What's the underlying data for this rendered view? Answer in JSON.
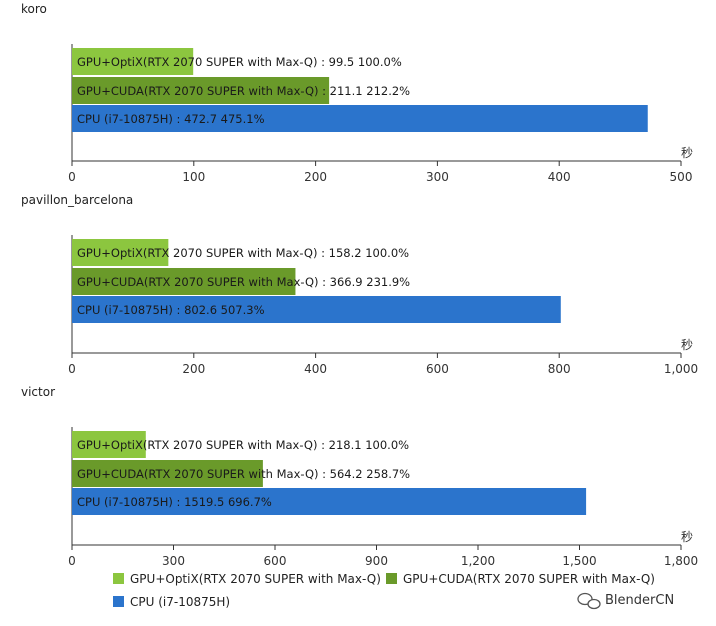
{
  "chart_data": [
    {
      "type": "bar",
      "orientation": "horizontal",
      "title": "koro",
      "xlabel": "秒",
      "xlim": [
        0,
        500
      ],
      "ticks": [
        "0",
        "100",
        "200",
        "300",
        "400",
        "500"
      ],
      "tick_values": [
        0,
        100,
        200,
        300,
        400,
        500
      ],
      "bars": [
        {
          "series": "GPU+OptiX(RTX 2070 SUPER with Max-Q)",
          "value": 99.5,
          "label": "GPU+OptiX(RTX 2070 SUPER with Max-Q) : 99.5  100.0%"
        },
        {
          "series": "GPU+CUDA(RTX 2070 SUPER with Max-Q)",
          "value": 211.1,
          "label": "GPU+CUDA(RTX 2070 SUPER with Max-Q) : 211.1  212.2%"
        },
        {
          "series": "CPU (i7-10875H)",
          "value": 472.7,
          "label": "CPU (i7-10875H) : 472.7  475.1%"
        }
      ]
    },
    {
      "type": "bar",
      "orientation": "horizontal",
      "title": "pavillon_barcelona",
      "xlabel": "秒",
      "xlim": [
        0,
        1000
      ],
      "ticks": [
        "0",
        "200",
        "400",
        "600",
        "800",
        "1,000"
      ],
      "tick_values": [
        0,
        200,
        400,
        600,
        800,
        1000
      ],
      "bars": [
        {
          "series": "GPU+OptiX(RTX 2070 SUPER with Max-Q)",
          "value": 158.2,
          "label": "GPU+OptiX(RTX 2070 SUPER with Max-Q) : 158.2  100.0%"
        },
        {
          "series": "GPU+CUDA(RTX 2070 SUPER with Max-Q)",
          "value": 366.9,
          "label": "GPU+CUDA(RTX 2070 SUPER with Max-Q) : 366.9  231.9%"
        },
        {
          "series": "CPU (i7-10875H)",
          "value": 802.6,
          "label": "CPU (i7-10875H) : 802.6  507.3%"
        }
      ]
    },
    {
      "type": "bar",
      "orientation": "horizontal",
      "title": "victor",
      "xlabel": "秒",
      "xlim": [
        0,
        1800
      ],
      "ticks": [
        "0",
        "300",
        "600",
        "900",
        "1,200",
        "1,500",
        "1,800"
      ],
      "tick_values": [
        0,
        300,
        600,
        900,
        1200,
        1500,
        1800
      ],
      "bars": [
        {
          "series": "GPU+OptiX(RTX 2070 SUPER with Max-Q)",
          "value": 218.1,
          "label": "GPU+OptiX(RTX 2070 SUPER with Max-Q) : 218.1  100.0%"
        },
        {
          "series": "GPU+CUDA(RTX 2070 SUPER with Max-Q)",
          "value": 564.2,
          "label": "GPU+CUDA(RTX 2070 SUPER with Max-Q) : 564.2  258.7%"
        },
        {
          "series": "CPU (i7-10875H)",
          "value": 1519.5,
          "label": "CPU (i7-10875H) : 1519.5  696.7%"
        }
      ]
    }
  ],
  "legend": {
    "placement": "bottom",
    "items": [
      {
        "name": "GPU+OptiX(RTX 2070 SUPER with Max-Q)",
        "color": "#8cc63f"
      },
      {
        "name": "GPU+CUDA(RTX 2070 SUPER with Max-Q)",
        "color": "#6a9a2a"
      },
      {
        "name": "CPU (i7-10875H)",
        "color": "#2b74cc"
      }
    ]
  },
  "series_colors": {
    "GPU+OptiX(RTX 2070 SUPER with Max-Q)": "#8cc63f",
    "GPU+CUDA(RTX 2070 SUPER with Max-Q)": "#6a9a2a",
    "CPU (i7-10875H)": "#2b74cc"
  },
  "watermark": {
    "icon": "wechat-icon",
    "text": "BlenderCN"
  }
}
